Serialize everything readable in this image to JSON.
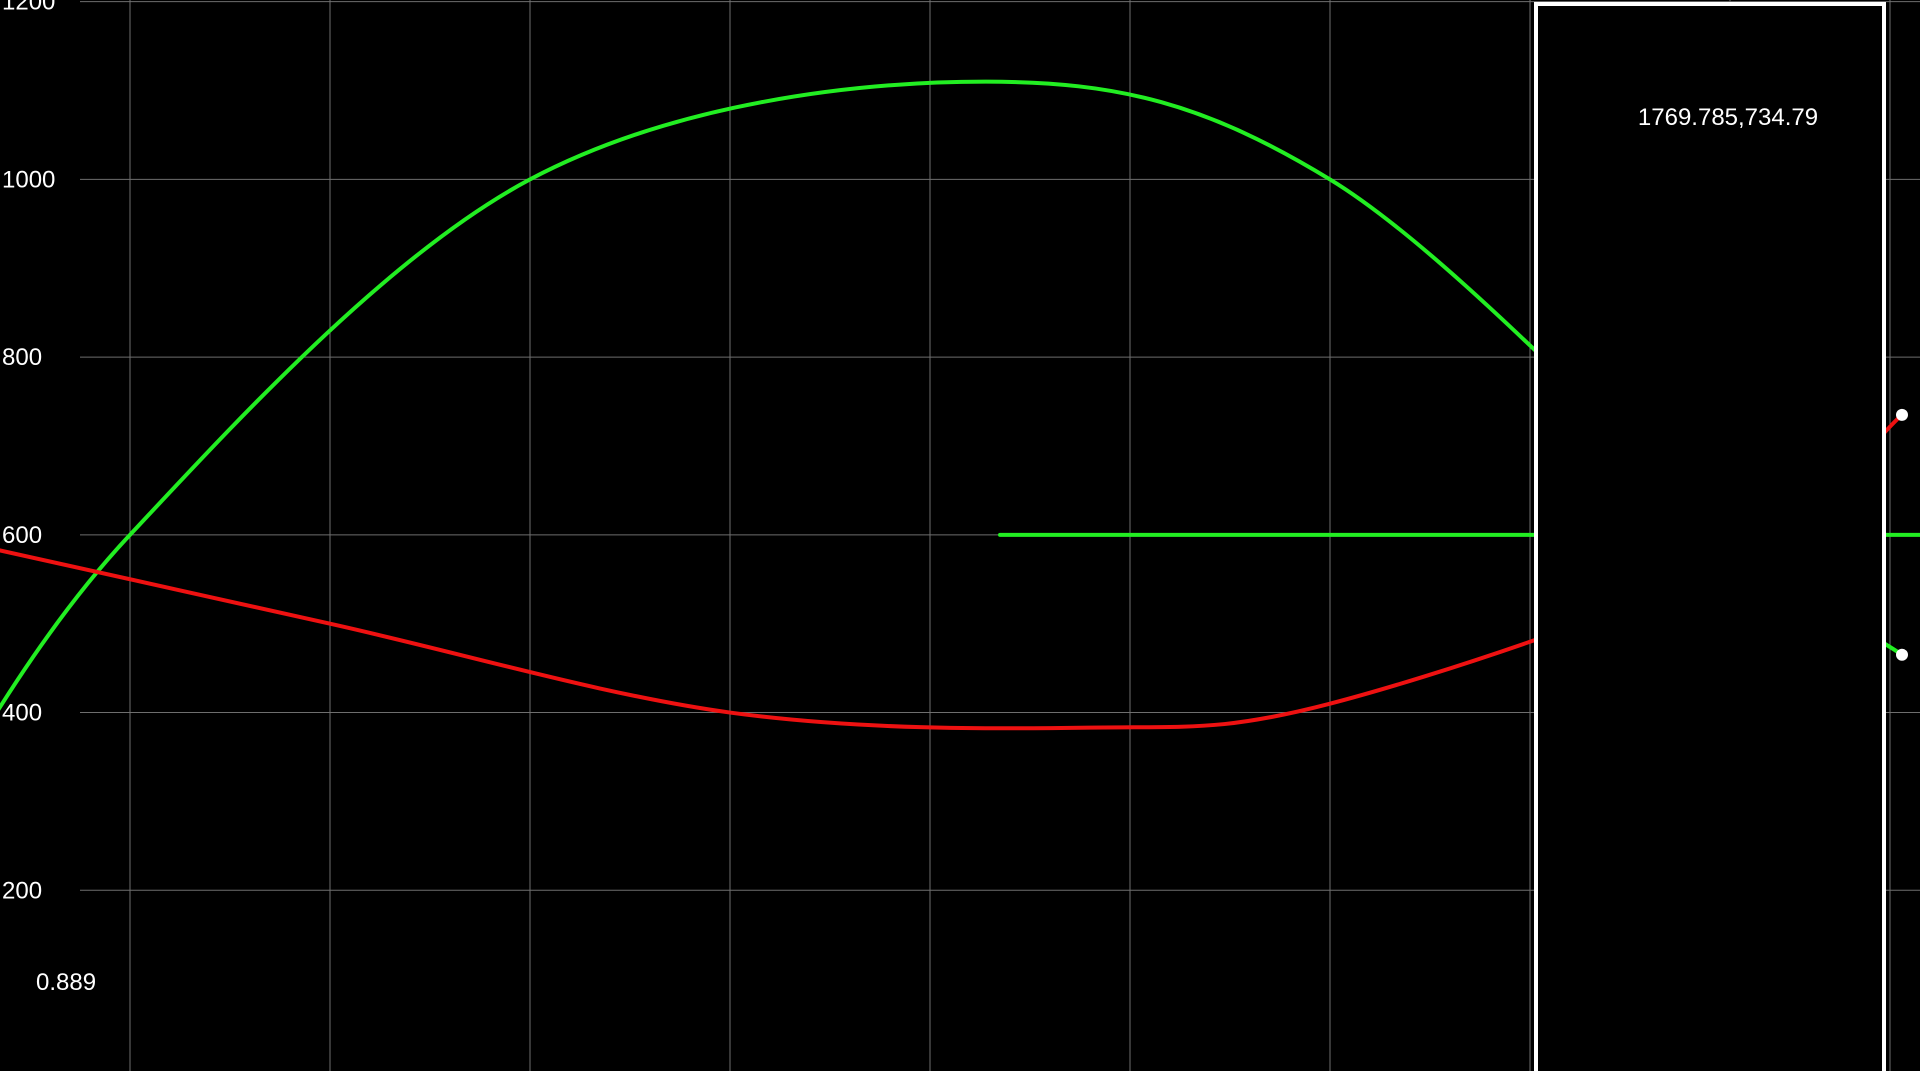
{
  "chart_data": {
    "type": "line",
    "title": "",
    "xlabel": "",
    "ylabel": "",
    "ylim": [
      0,
      1200
    ],
    "grid": true,
    "y_ticks": [
      "200",
      "400",
      "600",
      "800",
      "1000",
      "1200"
    ],
    "series": [
      {
        "color": "#22ee22",
        "points": [
          [
            -1.0,
            280
          ],
          [
            0.0,
            600
          ],
          [
            2.0,
            1000
          ],
          [
            4.28,
            1110
          ],
          [
            6.0,
            1000
          ],
          [
            8.0,
            600
          ],
          [
            8.86,
            465
          ]
        ]
      },
      {
        "color": "#ee1111",
        "points": [
          [
            -1.0,
            600
          ],
          [
            1.0,
            500
          ],
          [
            3.0,
            400
          ],
          [
            4.8,
            383
          ],
          [
            6.0,
            410
          ],
          [
            8.0,
            570
          ],
          [
            8.86,
            735
          ]
        ]
      },
      {
        "color": "#22ee22",
        "points": [
          [
            4.35,
            600
          ],
          [
            13.6,
            600
          ]
        ]
      }
    ],
    "endpoint_markers": [
      [
        8.86,
        735
      ],
      [
        8.86,
        465
      ]
    ],
    "marker_color": "#ffffff"
  },
  "readouts": {
    "corner_value": "0.889",
    "cursor_coords": "1769.785,734.79"
  },
  "colors": {
    "background": "#000000",
    "grid": "#6e6e6e",
    "panel_border": "#ffffff"
  }
}
